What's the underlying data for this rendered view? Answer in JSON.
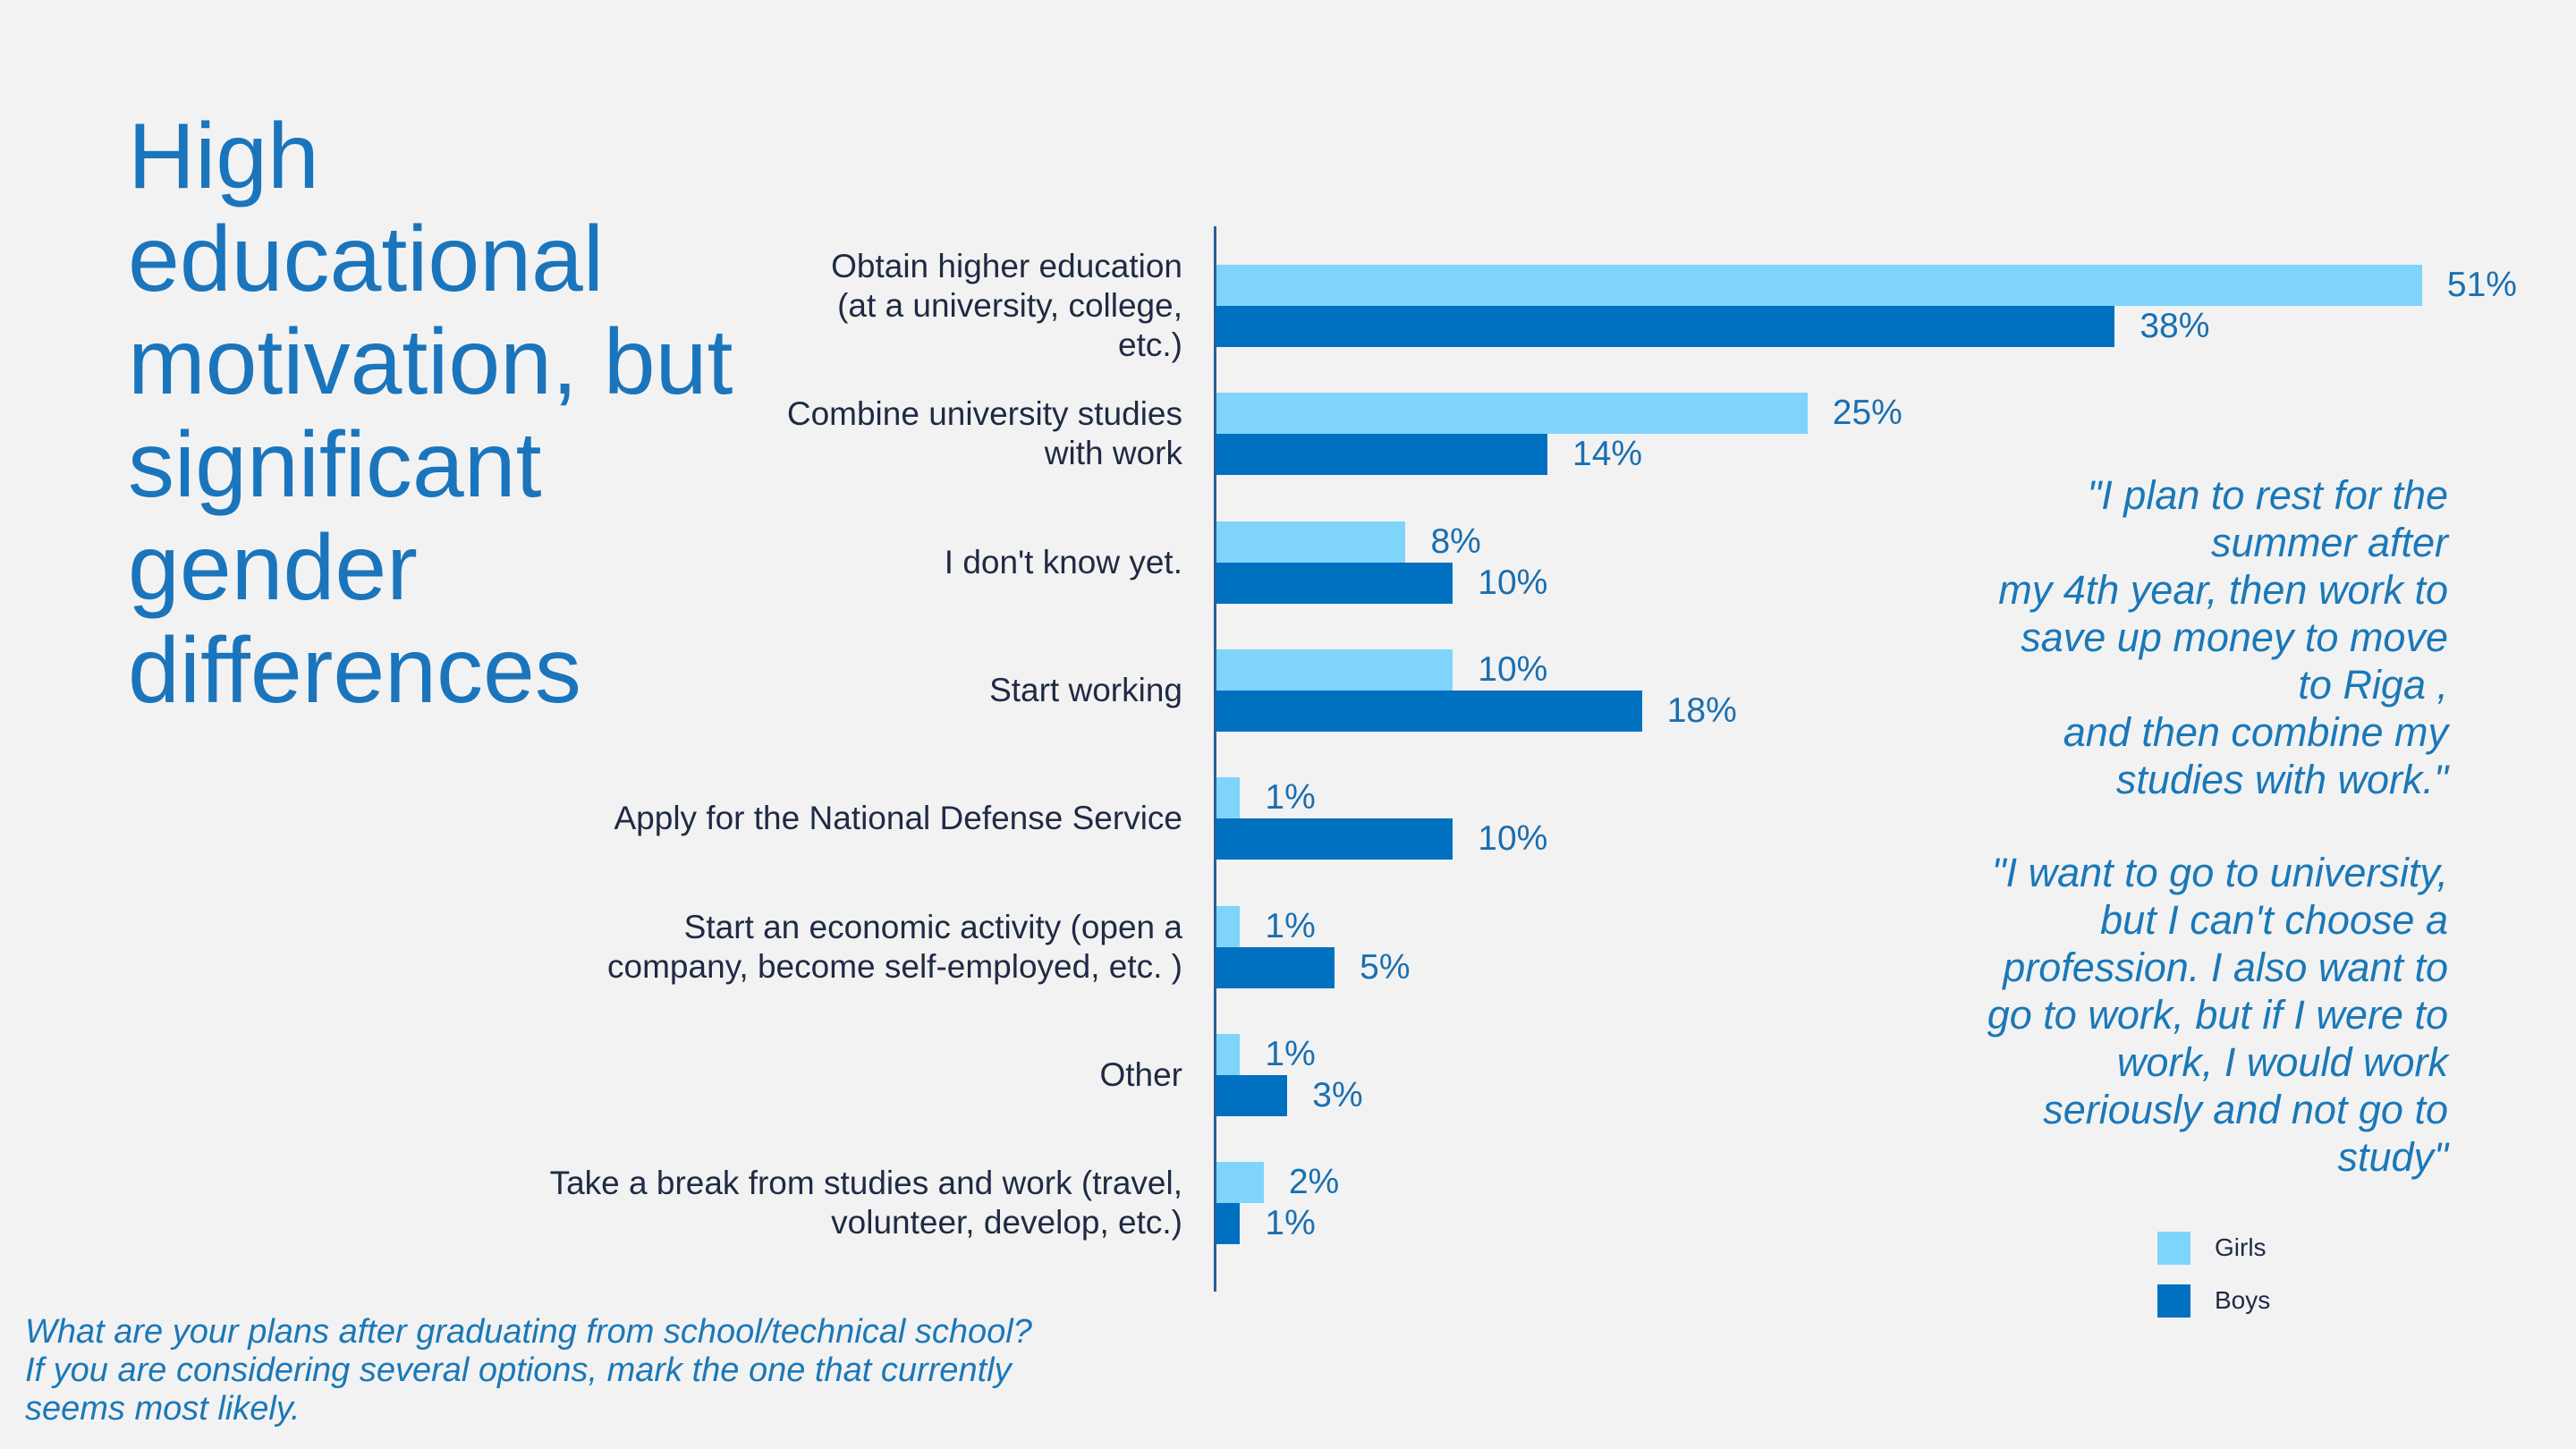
{
  "chart_data": {
    "type": "bar",
    "orientation": "horizontal",
    "title": "High educational motivation, but significant gender differences",
    "categories": [
      "Obtain higher education\n(at a university, college,\netc.)",
      "Combine university studies\nwith work",
      "I don't know yet.",
      "Start working",
      "Apply for the National Defense Service",
      "Start an economic activity (open a\ncompany, become self-employed, etc. )",
      "Other",
      "Take a break from studies and work (travel,\nvolunteer, develop, etc.)"
    ],
    "series": [
      {
        "name": "Girls",
        "color": "#7fd4fb",
        "values": [
          51,
          25,
          8,
          10,
          1,
          1,
          1,
          2
        ],
        "value_labels": [
          "51%",
          "25%",
          "8%",
          "10%",
          "1%",
          "1%",
          "1%",
          "2%"
        ]
      },
      {
        "name": "Boys",
        "color": "#0070c0",
        "values": [
          38,
          14,
          10,
          18,
          10,
          5,
          3,
          1
        ],
        "value_labels": [
          "38%",
          "14%",
          "10%",
          "18%",
          "10%",
          "5%",
          "3%",
          "1%"
        ]
      }
    ],
    "legend": "bottom-right",
    "annotations": [
      "\"I plan to rest for the\nsummer after\nmy 4th year, then work to\nsave up money to move\nto Riga ,\nand then combine my\nstudies with work.\"",
      "\"I want to go to university,\nbut I can't choose a\nprofession. I also want to\ngo to work, but if I were to\nwork, I would work\nseriously and not go to\nstudy\""
    ],
    "footnote": "What are your plans after graduating from school/technical school?\nIf you are considering several options, mark the one that currently\nseems most likely."
  }
}
